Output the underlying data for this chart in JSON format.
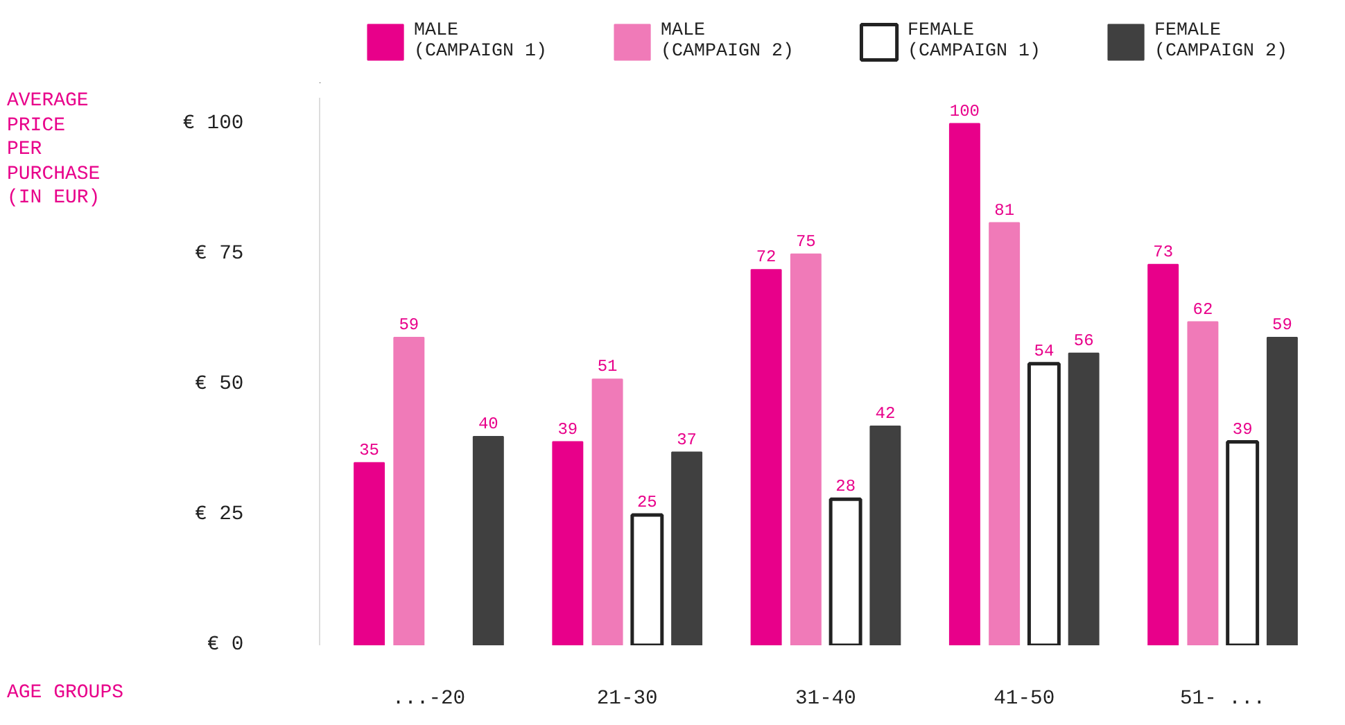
{
  "chart_data": {
    "type": "bar",
    "xlabel": "AGE GROUPS",
    "ylabel": "AVERAGE\nPRICE\nPER\nPURCHASE\n(IN EUR)",
    "categories": [
      "...-20",
      "21-30",
      "31-40",
      "41-50",
      "51- ..."
    ],
    "series": [
      {
        "name": "MALE\n(CAMPAIGN 1)",
        "color": "#e8008a",
        "values": [
          35,
          39,
          72,
          100,
          73
        ]
      },
      {
        "name": "MALE\n(CAMPAIGN 2)",
        "color": "#f07ab8",
        "values": [
          59,
          51,
          75,
          81,
          62
        ]
      },
      {
        "name": "FEMALE\n(CAMPAIGN 1)",
        "color": "#ffffff",
        "values": [
          null,
          25,
          28,
          54,
          39
        ]
      },
      {
        "name": "FEMALE\n(CAMPAIGN 2)",
        "color": "#404040",
        "values": [
          40,
          37,
          42,
          56,
          59
        ]
      }
    ],
    "ylim": [
      0,
      105
    ],
    "yticks": [
      {
        "value": 0,
        "label": "€  0"
      },
      {
        "value": 25,
        "label": "€  25"
      },
      {
        "value": 50,
        "label": "€  50"
      },
      {
        "value": 75,
        "label": "€  75"
      },
      {
        "value": 100,
        "label": "€  100"
      }
    ],
    "data_labels": true,
    "legend": "top",
    "grid": false
  }
}
